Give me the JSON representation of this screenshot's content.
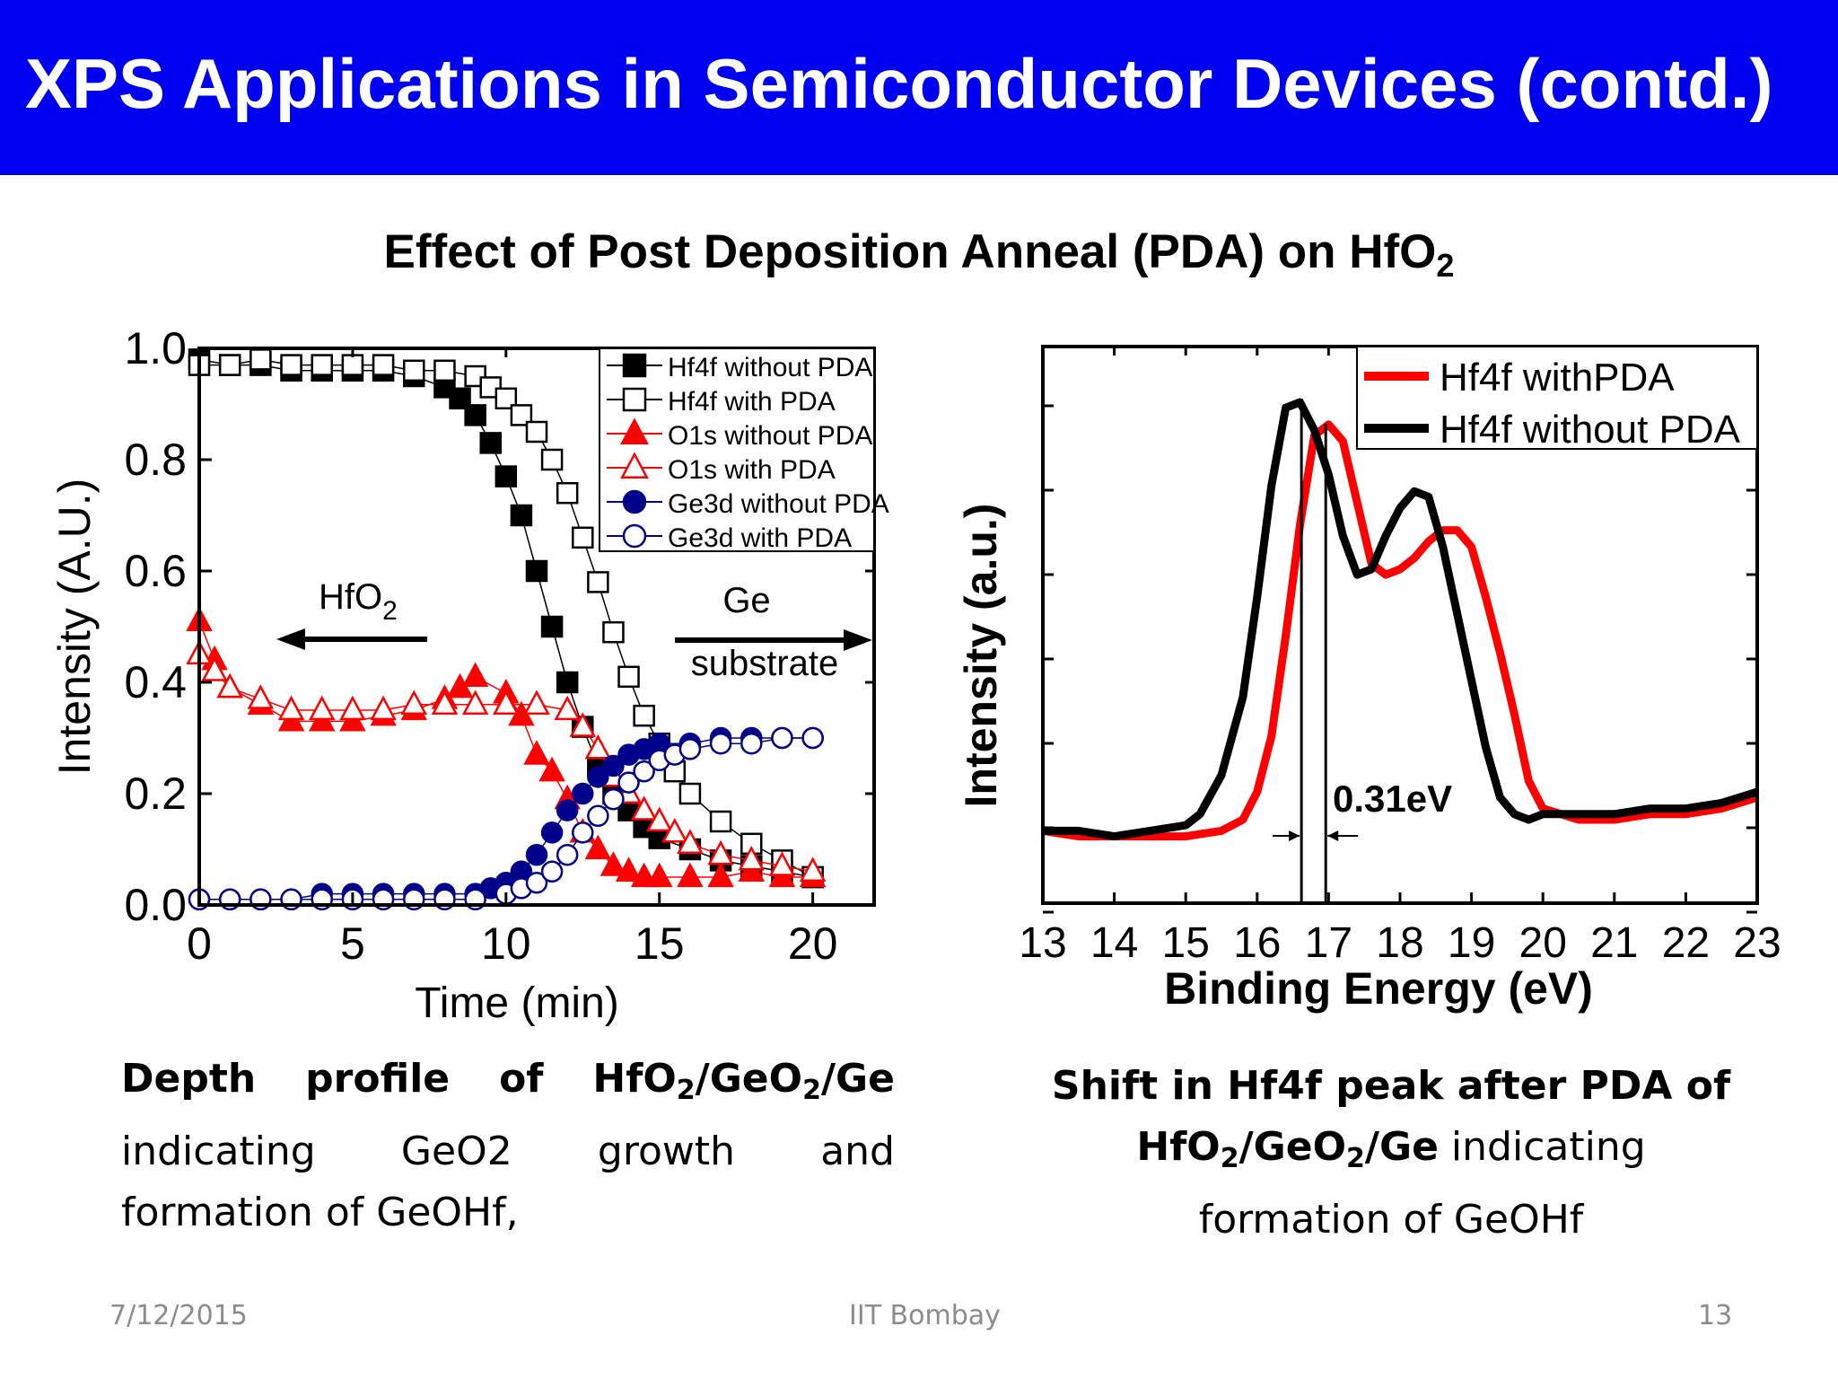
{
  "slide": {
    "title": "XPS Applications in Semiconductor Devices (contd.)",
    "subtitle_main": "Effect of Post Deposition Anneal (PDA) on HfO",
    "subtitle_sub": "2"
  },
  "colors": {
    "title_bg": "#0000f0",
    "red": "#ff0000",
    "navy": "#00008b",
    "black": "#000000"
  },
  "chart_data": [
    {
      "type": "scatter",
      "xlabel": "Time (min)",
      "ylabel": "Intensity (A.U.)",
      "xlim": [
        0,
        22
      ],
      "ylim": [
        0,
        1.0
      ],
      "x_ticks": [
        "0",
        "5",
        "10",
        "15",
        "20"
      ],
      "y_ticks": [
        "0.0",
        "0.2",
        "0.4",
        "0.6",
        "0.8",
        "1.0"
      ],
      "legend_position": "top-right",
      "annotations": [
        {
          "text": "HfO",
          "sub": "2",
          "arrow": "left"
        },
        {
          "text": "Ge",
          "line2": "substrate",
          "arrow": "right"
        }
      ],
      "series": [
        {
          "name": "Hf4f without PDA",
          "marker": "filled-square",
          "color": "#000000",
          "x": [
            0,
            1,
            2,
            3,
            4,
            5,
            6,
            7,
            8,
            8.5,
            9,
            9.5,
            10,
            10.5,
            11,
            11.5,
            12,
            12.5,
            13,
            13.5,
            14,
            14.5,
            15,
            16,
            17,
            18,
            19,
            20
          ],
          "y": [
            0.98,
            0.97,
            0.97,
            0.96,
            0.96,
            0.96,
            0.96,
            0.95,
            0.93,
            0.91,
            0.88,
            0.83,
            0.77,
            0.7,
            0.6,
            0.5,
            0.4,
            0.32,
            0.25,
            0.2,
            0.17,
            0.14,
            0.12,
            0.1,
            0.08,
            0.07,
            0.06,
            0.05
          ]
        },
        {
          "name": "Hf4f with PDA",
          "marker": "open-square",
          "color": "#000000",
          "x": [
            0,
            1,
            2,
            3,
            4,
            5,
            6,
            7,
            8,
            9,
            9.5,
            10,
            10.5,
            11,
            11.5,
            12,
            12.5,
            13,
            13.5,
            14,
            14.5,
            15,
            15.5,
            16,
            17,
            18,
            19,
            20
          ],
          "y": [
            0.97,
            0.97,
            0.98,
            0.97,
            0.97,
            0.97,
            0.97,
            0.96,
            0.96,
            0.95,
            0.93,
            0.91,
            0.88,
            0.85,
            0.8,
            0.74,
            0.66,
            0.58,
            0.49,
            0.41,
            0.34,
            0.29,
            0.24,
            0.2,
            0.15,
            0.11,
            0.08,
            0.05
          ]
        },
        {
          "name": "O1s without PDA",
          "marker": "filled-triangle",
          "color": "#ff0000",
          "x": [
            0,
            0.5,
            1,
            2,
            3,
            4,
            5,
            6,
            7,
            8,
            8.5,
            9,
            10,
            10.5,
            11,
            11.5,
            12,
            12.5,
            13,
            13.5,
            14,
            14.5,
            15,
            16,
            17,
            18,
            19,
            20
          ],
          "y": [
            0.51,
            0.44,
            0.39,
            0.36,
            0.33,
            0.33,
            0.33,
            0.34,
            0.35,
            0.37,
            0.39,
            0.41,
            0.38,
            0.34,
            0.27,
            0.24,
            0.19,
            0.13,
            0.1,
            0.07,
            0.06,
            0.05,
            0.05,
            0.05,
            0.05,
            0.06,
            0.05,
            0.05
          ]
        },
        {
          "name": "O1s with PDA",
          "marker": "open-triangle",
          "color": "#ff0000",
          "x": [
            0,
            0.5,
            1,
            2,
            3,
            4,
            5,
            6,
            7,
            8,
            9,
            10,
            11,
            12,
            12.5,
            13,
            13.5,
            14,
            14.5,
            15,
            15.5,
            16,
            17,
            18,
            19,
            20
          ],
          "y": [
            0.45,
            0.42,
            0.39,
            0.37,
            0.35,
            0.35,
            0.35,
            0.35,
            0.36,
            0.36,
            0.36,
            0.36,
            0.36,
            0.35,
            0.32,
            0.28,
            0.23,
            0.2,
            0.17,
            0.15,
            0.13,
            0.11,
            0.09,
            0.08,
            0.07,
            0.06
          ]
        },
        {
          "name": "Ge3d without PDA",
          "marker": "filled-circle",
          "color": "#00008b",
          "x": [
            0,
            1,
            2,
            3,
            4,
            5,
            6,
            7,
            8,
            9,
            9.5,
            10,
            10.5,
            11,
            11.5,
            12,
            12.5,
            13,
            13.5,
            14,
            14.5,
            15,
            16,
            17,
            18,
            19,
            20
          ],
          "y": [
            0.01,
            0.01,
            0.01,
            0.01,
            0.02,
            0.02,
            0.02,
            0.02,
            0.02,
            0.02,
            0.03,
            0.04,
            0.06,
            0.09,
            0.13,
            0.17,
            0.2,
            0.23,
            0.25,
            0.27,
            0.28,
            0.29,
            0.29,
            0.3,
            0.3,
            0.3,
            0.3
          ]
        },
        {
          "name": "Ge3d with PDA",
          "marker": "open-circle",
          "color": "#00008b",
          "x": [
            0,
            1,
            2,
            3,
            4,
            5,
            6,
            7,
            8,
            9,
            10,
            10.5,
            11,
            11.5,
            12,
            12.5,
            13,
            13.5,
            14,
            14.5,
            15,
            15.5,
            16,
            17,
            18,
            19,
            20
          ],
          "y": [
            0.01,
            0.01,
            0.01,
            0.01,
            0.01,
            0.01,
            0.01,
            0.01,
            0.01,
            0.01,
            0.02,
            0.03,
            0.04,
            0.06,
            0.09,
            0.13,
            0.16,
            0.19,
            0.22,
            0.24,
            0.26,
            0.27,
            0.28,
            0.29,
            0.29,
            0.3,
            0.3
          ]
        }
      ]
    },
    {
      "type": "line",
      "xlabel": "Binding Energy (eV)",
      "ylabel": "Intensity (a.u.)",
      "xlim": [
        13,
        23
      ],
      "ylim": [
        0,
        1.0
      ],
      "x_ticks": [
        "13",
        "14",
        "15",
        "16",
        "17",
        "18",
        "19",
        "20",
        "21",
        "22",
        "23"
      ],
      "legend_position": "top-right",
      "annotations": [
        {
          "text": "0.31eV",
          "x1": 16.62,
          "x2": 16.96
        }
      ],
      "series": [
        {
          "name": "Hf4f withPDA",
          "color": "#ff0000",
          "x": [
            13,
            13.5,
            14,
            14.5,
            15,
            15.5,
            15.8,
            16,
            16.2,
            16.4,
            16.6,
            16.8,
            17,
            17.2,
            17.4,
            17.6,
            17.8,
            18,
            18.2,
            18.4,
            18.6,
            18.8,
            19,
            19.2,
            19.4,
            19.6,
            19.8,
            20,
            20.5,
            21,
            21.5,
            22,
            22.5,
            23
          ],
          "y": [
            0.13,
            0.12,
            0.12,
            0.12,
            0.12,
            0.13,
            0.15,
            0.2,
            0.3,
            0.48,
            0.68,
            0.84,
            0.86,
            0.83,
            0.72,
            0.61,
            0.59,
            0.6,
            0.62,
            0.65,
            0.67,
            0.67,
            0.64,
            0.55,
            0.45,
            0.34,
            0.22,
            0.17,
            0.15,
            0.15,
            0.16,
            0.16,
            0.17,
            0.19
          ]
        },
        {
          "name": "Hf4f without PDA",
          "color": "#000000",
          "x": [
            13,
            13.5,
            14,
            14.5,
            15,
            15.2,
            15.5,
            15.8,
            16,
            16.2,
            16.4,
            16.6,
            16.8,
            17,
            17.2,
            17.4,
            17.6,
            17.8,
            18,
            18.2,
            18.4,
            18.6,
            18.8,
            19,
            19.2,
            19.4,
            19.6,
            19.8,
            20,
            20.5,
            21,
            21.5,
            22,
            22.5,
            23
          ],
          "y": [
            0.13,
            0.13,
            0.12,
            0.13,
            0.14,
            0.16,
            0.23,
            0.37,
            0.55,
            0.75,
            0.89,
            0.9,
            0.85,
            0.77,
            0.66,
            0.59,
            0.6,
            0.66,
            0.71,
            0.74,
            0.73,
            0.64,
            0.52,
            0.4,
            0.28,
            0.19,
            0.16,
            0.15,
            0.16,
            0.16,
            0.16,
            0.17,
            0.17,
            0.18,
            0.2
          ]
        }
      ]
    }
  ],
  "captions": {
    "left": {
      "w1": "Depth",
      "w2": "profile",
      "w3": "of",
      "f_a": "HfO",
      "f_s1": "2",
      "f_b": "/GeO",
      "f_s2": "2",
      "f_c": "/Ge",
      "l2w1": "indicating",
      "l2w2": "GeO2",
      "l2w3": "growth",
      "l2w4": "and",
      "l3": "formation of GeOHf,"
    },
    "right": {
      "l1": "Shift in Hf4f peak after PDA of",
      "f_a": "HfO",
      "f_s1": "2",
      "f_b": "/GeO",
      "f_s2": "2",
      "f_c": "/Ge",
      "l2_rest": " indicating",
      "l3": "formation of GeOHf"
    }
  },
  "footer": {
    "date": "7/12/2015",
    "center": "IIT Bombay",
    "page": "13"
  }
}
